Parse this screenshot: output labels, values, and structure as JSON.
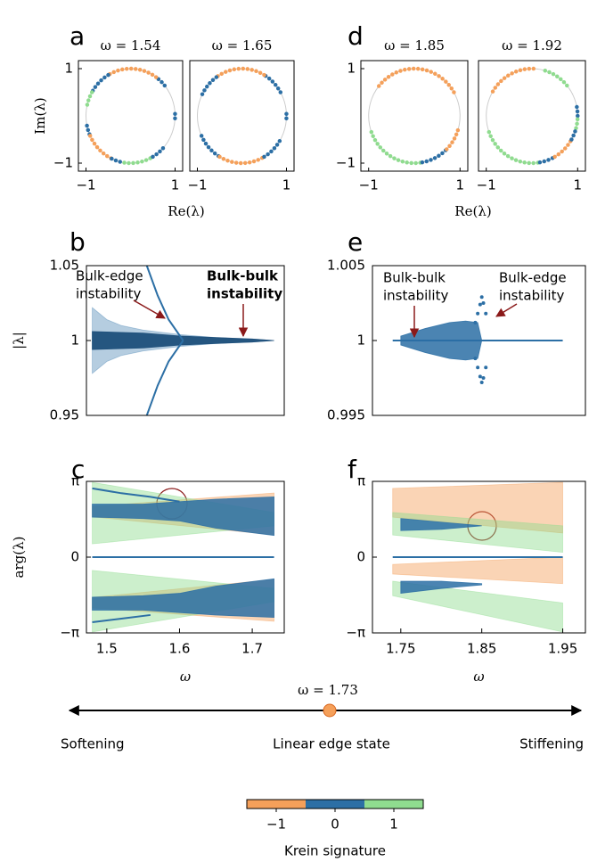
{
  "chart_data": [
    {
      "type": "circle-pair",
      "label": "a",
      "xlabel": "Re(λ)",
      "ylabel": "Im(λ)",
      "xlim": [
        -1.17,
        1.17
      ],
      "ylim": [
        -1.17,
        1.17
      ],
      "xticks": [
        {
          "value": -1,
          "label": "−1"
        },
        1
      ],
      "yticks": [
        1,
        {
          "value": -1,
          "label": "−1"
        }
      ],
      "panels": [
        {
          "title": "ω = 1.54",
          "arcs": [
            {
              "color": "#2c6fa5",
              "from": 40,
              "to": 55
            },
            {
              "color": "#f5a05a",
              "from": 55,
              "to": 120
            },
            {
              "color": "#2c6fa5",
              "from": 120,
              "to": 150
            },
            {
              "color": "#8fdc8f",
              "from": 150,
              "to": 168
            },
            {
              "color": "#2c6fa5",
              "from": 192,
              "to": 205
            },
            {
              "color": "#f5a05a",
              "from": 205,
              "to": 245
            },
            {
              "color": "#2c6fa5",
              "from": 245,
              "to": 262
            },
            {
              "color": "#8fdc8f",
              "from": 262,
              "to": 300
            },
            {
              "color": "#2c6fa5",
              "from": 300,
              "to": 318
            },
            {
              "color": "#2c6fa5",
              "from": -3,
              "to": 3
            }
          ]
        },
        {
          "title": "ω = 1.65",
          "arcs": [
            {
              "color": "#2c6fa5",
              "from": 30,
              "to": 60
            },
            {
              "color": "#f5a05a",
              "from": 60,
              "to": 125
            },
            {
              "color": "#2c6fa5",
              "from": 125,
              "to": 155
            },
            {
              "color": "#2c6fa5",
              "from": 205,
              "to": 240
            },
            {
              "color": "#f5a05a",
              "from": 240,
              "to": 300
            },
            {
              "color": "#2c6fa5",
              "from": 300,
              "to": 330
            },
            {
              "color": "#2c6fa5",
              "from": -3,
              "to": 3
            }
          ]
        }
      ]
    },
    {
      "type": "circle-pair",
      "label": "d",
      "xlabel": "Re(λ)",
      "xlim": [
        -1.17,
        1.17
      ],
      "ylim": [
        -1.17,
        1.17
      ],
      "xticks": [
        {
          "value": -1,
          "label": "−1"
        },
        1
      ],
      "yticks": [
        1,
        {
          "value": -1,
          "label": "−1"
        }
      ],
      "panels": [
        {
          "title": "ω = 1.85",
          "arcs": [
            {
              "color": "#f5a05a",
              "from": 30,
              "to": 145
            },
            {
              "color": "#8fdc8f",
              "from": 200,
              "to": 280
            },
            {
              "color": "#2c6fa5",
              "from": 280,
              "to": 315
            },
            {
              "color": "#f5a05a",
              "from": 315,
              "to": 345
            }
          ]
        },
        {
          "title": "ω = 1.92",
          "arcs": [
            {
              "color": "#8fdc8f",
              "from": 40,
              "to": 75
            },
            {
              "color": "#f5a05a",
              "from": 88,
              "to": 150
            },
            {
              "color": "#2c6fa5",
              "from": 0,
              "to": 15
            },
            {
              "color": "#8fdc8f",
              "from": 345,
              "to": 360
            },
            {
              "color": "#8fdc8f",
              "from": 200,
              "to": 280
            },
            {
              "color": "#2c6fa5",
              "from": 280,
              "to": 300
            },
            {
              "color": "#f5a05a",
              "from": 300,
              "to": 330
            },
            {
              "color": "#2c6fa5",
              "from": 330,
              "to": 345
            }
          ]
        }
      ]
    },
    {
      "type": "band",
      "label": "b",
      "ylabel": "|λ|",
      "xlim": [
        1.472,
        1.744
      ],
      "ylim": [
        0.95,
        1.05
      ],
      "yticks": [
        1.05,
        1,
        0.95
      ],
      "series": [
        {
          "kind": "band",
          "color": "#2c6fa5",
          "opacity": 0.35,
          "x": [
            1.48,
            1.5,
            1.52,
            1.55,
            1.6,
            1.65,
            1.7,
            1.73
          ],
          "lower": [
            0.978,
            0.986,
            0.99,
            0.993,
            0.996,
            0.998,
            0.999,
            1.0
          ],
          "upper": [
            1.022,
            1.014,
            1.01,
            1.007,
            1.004,
            1.002,
            1.001,
            1.0
          ]
        },
        {
          "kind": "band",
          "color": "#1d4f7a",
          "opacity": 0.95,
          "x": [
            1.48,
            1.55,
            1.6,
            1.65,
            1.7,
            1.73
          ],
          "lower": [
            0.994,
            0.995,
            0.997,
            0.998,
            0.999,
            1.0
          ],
          "upper": [
            1.006,
            1.005,
            1.003,
            1.002,
            1.001,
            1.0
          ]
        },
        {
          "kind": "line",
          "color": "#2c6fa5",
          "x": [
            1.555,
            1.57,
            1.585,
            1.605
          ],
          "values": [
            1.05,
            1.03,
            1.014,
            1.0
          ]
        },
        {
          "kind": "line",
          "color": "#2c6fa5",
          "x": [
            1.555,
            1.57,
            1.585,
            1.605
          ],
          "values": [
            0.95,
            0.97,
            0.986,
            1.0
          ]
        }
      ],
      "annotations": [
        {
          "lines": [
            "Bulk-edge",
            "instability"
          ]
        },
        {
          "lines": [
            "Bulk-bulk",
            "instability"
          ]
        }
      ]
    },
    {
      "type": "band",
      "label": "e",
      "xlim": [
        1.715,
        1.978
      ],
      "ylim": [
        0.995,
        1.005
      ],
      "yticks": [
        1.005,
        1,
        0.995
      ],
      "series": [
        {
          "kind": "line",
          "color": "#2c6fa5",
          "x": [
            1.74,
            1.95
          ],
          "values": [
            1,
            1
          ]
        },
        {
          "kind": "band",
          "color": "#2c6fa5",
          "opacity": 0.85,
          "x": [
            1.75,
            1.78,
            1.81,
            1.83,
            1.845,
            1.85
          ],
          "lower": [
            0.9997,
            0.9992,
            0.9988,
            0.9987,
            0.9988,
            1.0
          ],
          "upper": [
            1.0003,
            1.0008,
            1.0012,
            1.0013,
            1.0012,
            1.0
          ]
        },
        {
          "kind": "scatter",
          "color": "#2c6fa5",
          "x": [
            1.842,
            1.845,
            1.848,
            1.85,
            1.852,
            1.855,
            1.842,
            1.845,
            1.848,
            1.85,
            1.852,
            1.855
          ],
          "values": [
            1.0012,
            1.0018,
            1.0024,
            1.0029,
            1.0025,
            1.0018,
            0.9988,
            0.9982,
            0.9976,
            0.9972,
            0.9975,
            0.9982
          ]
        }
      ],
      "annotations": [
        {
          "lines": [
            "Bulk-bulk",
            "instability"
          ]
        },
        {
          "lines": [
            "Bulk-edge",
            "instability"
          ]
        }
      ]
    },
    {
      "type": "band",
      "label": "c",
      "xlabel": "ω",
      "ylabel": "arg(λ)",
      "xlim": [
        1.472,
        1.744
      ],
      "ylim": [
        -3.1416,
        3.1416
      ],
      "xticks": [
        1.5,
        1.6,
        1.7
      ],
      "yticks": [
        {
          "value": 3.1416,
          "label": "π"
        },
        0,
        {
          "value": -3.1416,
          "label": "−π"
        }
      ],
      "series": [
        {
          "kind": "band",
          "color": "#f5a05a",
          "opacity": 0.45,
          "x": [
            1.48,
            1.73
          ],
          "lower": [
            1.67,
            0.92
          ],
          "upper": [
            2.1,
            2.66
          ]
        },
        {
          "kind": "band",
          "color": "#8fdc8f",
          "opacity": 0.45,
          "x": [
            1.48,
            1.73
          ],
          "lower": [
            0.55,
            1.3
          ],
          "upper": [
            3.1,
            1.85
          ]
        },
        {
          "kind": "band",
          "color": "#f5a05a",
          "opacity": 0.45,
          "x": [
            1.48,
            1.73
          ],
          "lower": [
            -2.1,
            -2.66
          ],
          "upper": [
            -1.67,
            -0.92
          ]
        },
        {
          "kind": "band",
          "color": "#8fdc8f",
          "opacity": 0.45,
          "x": [
            1.48,
            1.73
          ],
          "lower": [
            -3.1,
            -1.85
          ],
          "upper": [
            -0.55,
            -1.3
          ]
        },
        {
          "kind": "band",
          "color": "#2c6fa5",
          "opacity": 0.85,
          "x": [
            1.48,
            1.55,
            1.6,
            1.65,
            1.73
          ],
          "lower": [
            1.66,
            1.6,
            1.5,
            1.2,
            0.9
          ],
          "upper": [
            2.2,
            2.2,
            2.3,
            2.4,
            2.5
          ]
        },
        {
          "kind": "band",
          "color": "#2c6fa5",
          "opacity": 0.85,
          "x": [
            1.48,
            1.55,
            1.6,
            1.65,
            1.73
          ],
          "lower": [
            -2.2,
            -2.2,
            -2.3,
            -2.4,
            -2.5
          ],
          "upper": [
            -1.66,
            -1.6,
            -1.5,
            -1.2,
            -0.9
          ]
        },
        {
          "kind": "line",
          "color": "#2c6fa5",
          "x": [
            1.48,
            1.52,
            1.56,
            1.6
          ],
          "values": [
            2.85,
            2.65,
            2.5,
            2.3
          ]
        },
        {
          "kind": "line",
          "color": "#2c6fa5",
          "x": [
            1.48,
            1.52,
            1.56
          ],
          "values": [
            -2.7,
            -2.55,
            -2.4
          ]
        },
        {
          "kind": "line",
          "color": "#2c6fa5",
          "x": [
            1.48,
            1.73
          ],
          "values": [
            0,
            0
          ]
        }
      ]
    },
    {
      "type": "band",
      "label": "f",
      "xlabel": "ω",
      "xlim": [
        1.715,
        1.978
      ],
      "ylim": [
        -3.1416,
        3.1416
      ],
      "xticks": [
        1.75,
        1.85,
        1.95
      ],
      "yticks": [
        {
          "value": 3.1416,
          "label": "π"
        },
        0,
        {
          "value": -3.1416,
          "label": "−π"
        }
      ],
      "series": [
        {
          "kind": "band",
          "color": "#f5a05a",
          "opacity": 0.45,
          "x": [
            1.74,
            1.95
          ],
          "lower": [
            1.66,
            1.0
          ],
          "upper": [
            2.85,
            3.1
          ]
        },
        {
          "kind": "band",
          "color": "#8fdc8f",
          "opacity": 0.45,
          "x": [
            1.74,
            1.95
          ],
          "lower": [
            0.92,
            0.2
          ],
          "upper": [
            1.85,
            1.3
          ]
        },
        {
          "kind": "band",
          "color": "#f5a05a",
          "opacity": 0.45,
          "x": [
            1.74,
            1.95
          ],
          "lower": [
            -0.7,
            -1.1
          ],
          "upper": [
            -0.3,
            0.0
          ]
        },
        {
          "kind": "band",
          "color": "#8fdc8f",
          "opacity": 0.45,
          "x": [
            1.74,
            1.95
          ],
          "lower": [
            -1.6,
            -3.1
          ],
          "upper": [
            -1.0,
            -1.9
          ]
        },
        {
          "kind": "band",
          "color": "#2c6fa5",
          "opacity": 0.85,
          "x": [
            1.75,
            1.8,
            1.85
          ],
          "lower": [
            1.1,
            1.15,
            1.3
          ],
          "upper": [
            1.6,
            1.45,
            1.3
          ]
        },
        {
          "kind": "band",
          "color": "#2c6fa5",
          "opacity": 0.85,
          "x": [
            1.75,
            1.8,
            1.85
          ],
          "lower": [
            -1.5,
            -1.3,
            -1.15
          ],
          "upper": [
            -1.0,
            -1.0,
            -1.1
          ]
        },
        {
          "kind": "line",
          "color": "#2c6fa5",
          "x": [
            1.74,
            1.95
          ],
          "values": [
            0,
            0
          ]
        }
      ]
    }
  ],
  "spectrum": {
    "marker_label": "ω = 1.73",
    "left": "Softening",
    "center": "Linear edge state",
    "right": "Stiffening"
  },
  "colorbar": {
    "clim": [
      -1.5,
      1.5
    ],
    "colors": [
      "#f5a05a",
      "#2c6fa5",
      "#8fdc8f"
    ],
    "ticks": [
      {
        "value": -1,
        "label": "−1"
      },
      0,
      1
    ],
    "label": "Krein signature"
  }
}
